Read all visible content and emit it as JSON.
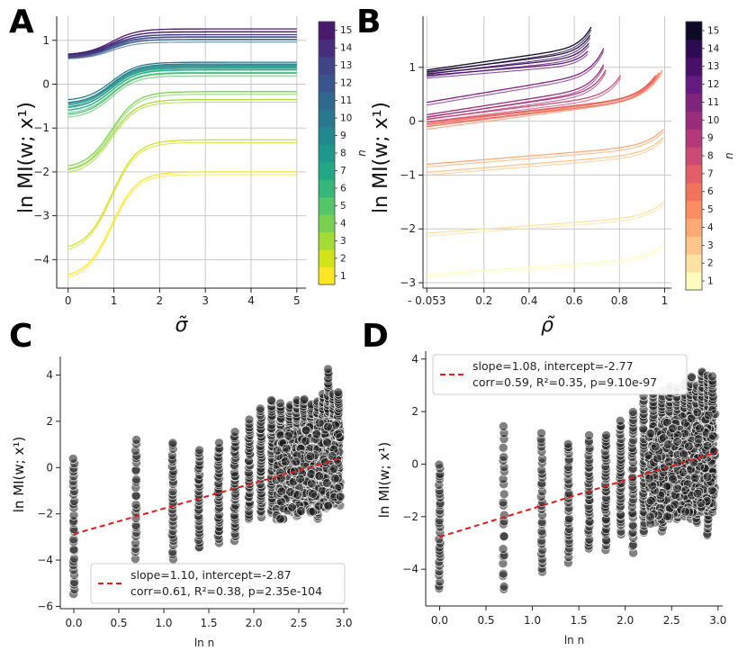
{
  "colors": {
    "viridis": [
      "#fde725",
      "#d2e21b",
      "#a5db36",
      "#7ad151",
      "#54c568",
      "#35b779",
      "#22a884",
      "#1f988b",
      "#23888e",
      "#2a788e",
      "#31688e",
      "#39568c",
      "#414487",
      "#472d7b",
      "#481a6c"
    ],
    "magma": [
      "#fcfdbf",
      "#fde2a3",
      "#fec68a",
      "#fea973",
      "#fa8d62",
      "#f2735c",
      "#e35e66",
      "#cc4a73",
      "#b3397a",
      "#992d7b",
      "#7f247d",
      "#641a80",
      "#48106b",
      "#2d0b52",
      "#0e0a26"
    ],
    "regression": "#e41a1c",
    "points": "#000000"
  },
  "panels": [
    {
      "letter": "A",
      "chart_data": {
        "type": "line",
        "xlabel": "σ̃",
        "ylabel": "ln MI(w; x¹)",
        "xlim": [
          -0.25,
          5.2
        ],
        "ylim": [
          -4.65,
          1.55
        ],
        "xticks": [
          "0",
          "1",
          "2",
          "3",
          "4",
          "5"
        ],
        "yticks": [
          "−4",
          "−3",
          "−2",
          "−1",
          "0",
          "1"
        ],
        "colorbar": {
          "label": "n",
          "ticks": [
            "1",
            "2",
            "3",
            "4",
            "5",
            "6",
            "7",
            "8",
            "9",
            "10",
            "11",
            "12",
            "13",
            "14",
            "15"
          ],
          "colormap": "viridis"
        },
        "series": [
          {
            "n": 1,
            "y0": -4.42,
            "y1": -2.0
          },
          {
            "n": 2,
            "y0": -3.78,
            "y1": -1.27
          },
          {
            "n": 3,
            "y0": -2.0,
            "y1": -0.35
          },
          {
            "n": 4,
            "y0": -1.92,
            "y1": -0.17
          },
          {
            "n": 5,
            "y0": -0.72,
            "y1": 0.25
          },
          {
            "n": 6,
            "y0": -0.62,
            "y1": 0.33
          },
          {
            "n": 7,
            "y0": -0.56,
            "y1": 0.38
          },
          {
            "n": 8,
            "y0": -0.48,
            "y1": 0.42
          },
          {
            "n": 9,
            "y0": -0.45,
            "y1": 0.46
          },
          {
            "n": 10,
            "y0": -0.38,
            "y1": 0.5
          },
          {
            "n": 11,
            "y0": 0.63,
            "y1": 1.02
          },
          {
            "n": 12,
            "y0": 0.64,
            "y1": 1.08
          },
          {
            "n": 13,
            "y0": 0.65,
            "y1": 1.13
          },
          {
            "n": 14,
            "y0": 0.66,
            "y1": 1.19
          },
          {
            "n": 15,
            "y0": 0.67,
            "y1": 1.26
          }
        ]
      }
    },
    {
      "letter": "B",
      "chart_data": {
        "type": "line",
        "xlabel": "ρ̃",
        "ylabel": "ln MI(w; x¹)",
        "xlim": [
          -0.07,
          1.03
        ],
        "ylim": [
          -3.1,
          1.95
        ],
        "xticks": [
          "- 0.053",
          "0.2",
          "0.4",
          "0.6",
          "0.8",
          "1"
        ],
        "yticks": [
          "−3",
          "−2",
          "−1",
          "0",
          "1"
        ],
        "colorbar": {
          "label": "n",
          "ticks": [
            "1",
            "2",
            "3",
            "4",
            "5",
            "6",
            "7",
            "8",
            "9",
            "10",
            "11",
            "12",
            "13",
            "14",
            "15"
          ],
          "colormap": "magma"
        },
        "series": [
          {
            "n": 1,
            "y0": -2.85,
            "y1": -2.28,
            "xend": 0.995
          },
          {
            "n": 2,
            "y0": -2.08,
            "y1": -1.5,
            "xend": 0.995
          },
          {
            "n": 3,
            "y0": -0.95,
            "y1": -0.3,
            "xend": 0.995
          },
          {
            "n": 4,
            "y0": -0.8,
            "y1": -0.15,
            "xend": 0.995
          },
          {
            "n": 5,
            "y0": -0.1,
            "y1": 0.95,
            "xend": 0.99
          },
          {
            "n": 6,
            "y0": -0.05,
            "y1": 0.9,
            "xend": 0.975
          },
          {
            "n": 7,
            "y0": -0.02,
            "y1": 0.85,
            "xend": 0.96
          },
          {
            "n": 8,
            "y0": 0.04,
            "y1": 0.85,
            "xend": 0.805
          },
          {
            "n": 9,
            "y0": 0.08,
            "y1": 0.95,
            "xend": 0.74
          },
          {
            "n": 10,
            "y0": 0.12,
            "y1": 1.05,
            "xend": 0.73
          },
          {
            "n": 11,
            "y0": 0.35,
            "y1": 1.35,
            "xend": 0.73
          },
          {
            "n": 12,
            "y0": 0.85,
            "y1": 1.3,
            "xend": 0.66
          },
          {
            "n": 13,
            "y0": 0.88,
            "y1": 1.45,
            "xend": 0.665
          },
          {
            "n": 14,
            "y0": 0.92,
            "y1": 1.6,
            "xend": 0.67
          },
          {
            "n": 15,
            "y0": 0.95,
            "y1": 1.75,
            "xend": 0.675
          }
        ]
      }
    },
    {
      "letter": "C",
      "chart_data": {
        "type": "scatter",
        "xlabel": "ln n",
        "ylabel": "ln MI(w; x¹)",
        "xlim": [
          -0.15,
          3.05
        ],
        "ylim": [
          -6.1,
          4.8
        ],
        "xticks": [
          "0.0",
          "0.5",
          "1.0",
          "1.5",
          "2.0",
          "2.5",
          "3.0"
        ],
        "yticks": [
          "−6",
          "−4",
          "−2",
          "0",
          "2",
          "4"
        ],
        "regression": {
          "slope": 1.1,
          "intercept": -2.87,
          "xrange": [
            0.0,
            2.99
          ]
        },
        "legend": {
          "line1": "slope=1.10, intercept=-2.87",
          "line2": "corr=0.61, R²=0.38, p=2.35e-104",
          "position": "lower right"
        },
        "point_clouds": [
          {
            "x": 0.0,
            "y_min": -5.6,
            "y_max": 0.5,
            "count": 30
          },
          {
            "x": 0.69,
            "y_min": -4.0,
            "y_max": 1.35,
            "count": 25
          },
          {
            "x": 1.1,
            "y_min": -4.0,
            "y_max": 1.2,
            "count": 30
          },
          {
            "x": 1.39,
            "y_min": -3.6,
            "y_max": 0.8,
            "count": 30
          },
          {
            "x": 1.61,
            "y_min": -3.3,
            "y_max": 1.1,
            "count": 32
          },
          {
            "x": 1.79,
            "y_min": -3.2,
            "y_max": 1.6,
            "count": 34
          },
          {
            "x": 1.95,
            "y_min": -2.3,
            "y_max": 2.1,
            "count": 34
          },
          {
            "x": 2.08,
            "y_min": -2.2,
            "y_max": 2.6,
            "count": 36
          },
          {
            "x": 2.2,
            "y_min": -2.0,
            "y_max": 3.0,
            "count": 38
          },
          {
            "x": 2.3,
            "y_min": -1.7,
            "y_max": 2.8,
            "count": 40
          },
          {
            "x": 2.4,
            "y_min": -1.7,
            "y_max": 2.8,
            "count": 42
          },
          {
            "x": 2.48,
            "y_min": -2.1,
            "y_max": 3.0,
            "count": 44
          },
          {
            "x": 2.56,
            "y_min": -1.6,
            "y_max": 3.0,
            "count": 44
          },
          {
            "x": 2.64,
            "y_min": -1.5,
            "y_max": 2.8,
            "count": 44
          },
          {
            "x": 2.71,
            "y_min": -2.3,
            "y_max": 2.9,
            "count": 46
          },
          {
            "x": 2.77,
            "y_min": -1.3,
            "y_max": 3.2,
            "count": 46
          },
          {
            "x": 2.83,
            "y_min": -0.8,
            "y_max": 4.3,
            "count": 46
          },
          {
            "x": 2.89,
            "y_min": -1.6,
            "y_max": 3.2,
            "count": 46
          },
          {
            "x": 2.94,
            "y_min": -1.2,
            "y_max": 3.3,
            "count": 44
          }
        ]
      }
    },
    {
      "letter": "D",
      "chart_data": {
        "type": "scatter",
        "xlabel": "ln n",
        "ylabel": "ln MI(w; x¹)",
        "xlim": [
          -0.15,
          3.05
        ],
        "ylim": [
          -5.4,
          4.3
        ],
        "xticks": [
          "0.0",
          "0.5",
          "1.0",
          "1.5",
          "2.0",
          "2.5",
          "3.0"
        ],
        "yticks": [
          "−4",
          "−2",
          "0",
          "2",
          "4"
        ],
        "regression": {
          "slope": 1.08,
          "intercept": -2.77,
          "xrange": [
            0.0,
            2.99
          ]
        },
        "legend": {
          "line1": "slope=1.08, intercept=-2.77",
          "line2": "corr=0.59, R²=0.35, p=9.10e-97",
          "position": "upper left"
        },
        "point_clouds": [
          {
            "x": 0.0,
            "y_min": -4.85,
            "y_max": 0.1,
            "count": 30
          },
          {
            "x": 0.69,
            "y_min": -5.0,
            "y_max": 1.5,
            "count": 26
          },
          {
            "x": 1.1,
            "y_min": -4.2,
            "y_max": 1.2,
            "count": 30
          },
          {
            "x": 1.39,
            "y_min": -3.8,
            "y_max": 0.9,
            "count": 30
          },
          {
            "x": 1.61,
            "y_min": -3.3,
            "y_max": 1.1,
            "count": 32
          },
          {
            "x": 1.79,
            "y_min": -3.3,
            "y_max": 1.2,
            "count": 34
          },
          {
            "x": 1.95,
            "y_min": -2.7,
            "y_max": 1.7,
            "count": 34
          },
          {
            "x": 2.08,
            "y_min": -3.4,
            "y_max": 2.1,
            "count": 36
          },
          {
            "x": 2.2,
            "y_min": -2.7,
            "y_max": 2.6,
            "count": 38
          },
          {
            "x": 2.3,
            "y_min": -2.2,
            "y_max": 2.7,
            "count": 40
          },
          {
            "x": 2.4,
            "y_min": -2.6,
            "y_max": 2.8,
            "count": 42
          },
          {
            "x": 2.48,
            "y_min": -2.0,
            "y_max": 3.0,
            "count": 44
          },
          {
            "x": 2.56,
            "y_min": -2.2,
            "y_max": 3.0,
            "count": 44
          },
          {
            "x": 2.64,
            "y_min": -2.0,
            "y_max": 3.2,
            "count": 44
          },
          {
            "x": 2.71,
            "y_min": -2.1,
            "y_max": 3.4,
            "count": 46
          },
          {
            "x": 2.77,
            "y_min": -2.3,
            "y_max": 3.0,
            "count": 46
          },
          {
            "x": 2.83,
            "y_min": -1.9,
            "y_max": 3.6,
            "count": 46
          },
          {
            "x": 2.89,
            "y_min": -2.8,
            "y_max": 3.5,
            "count": 46
          },
          {
            "x": 2.94,
            "y_min": -1.9,
            "y_max": 3.4,
            "count": 44
          }
        ]
      }
    }
  ]
}
